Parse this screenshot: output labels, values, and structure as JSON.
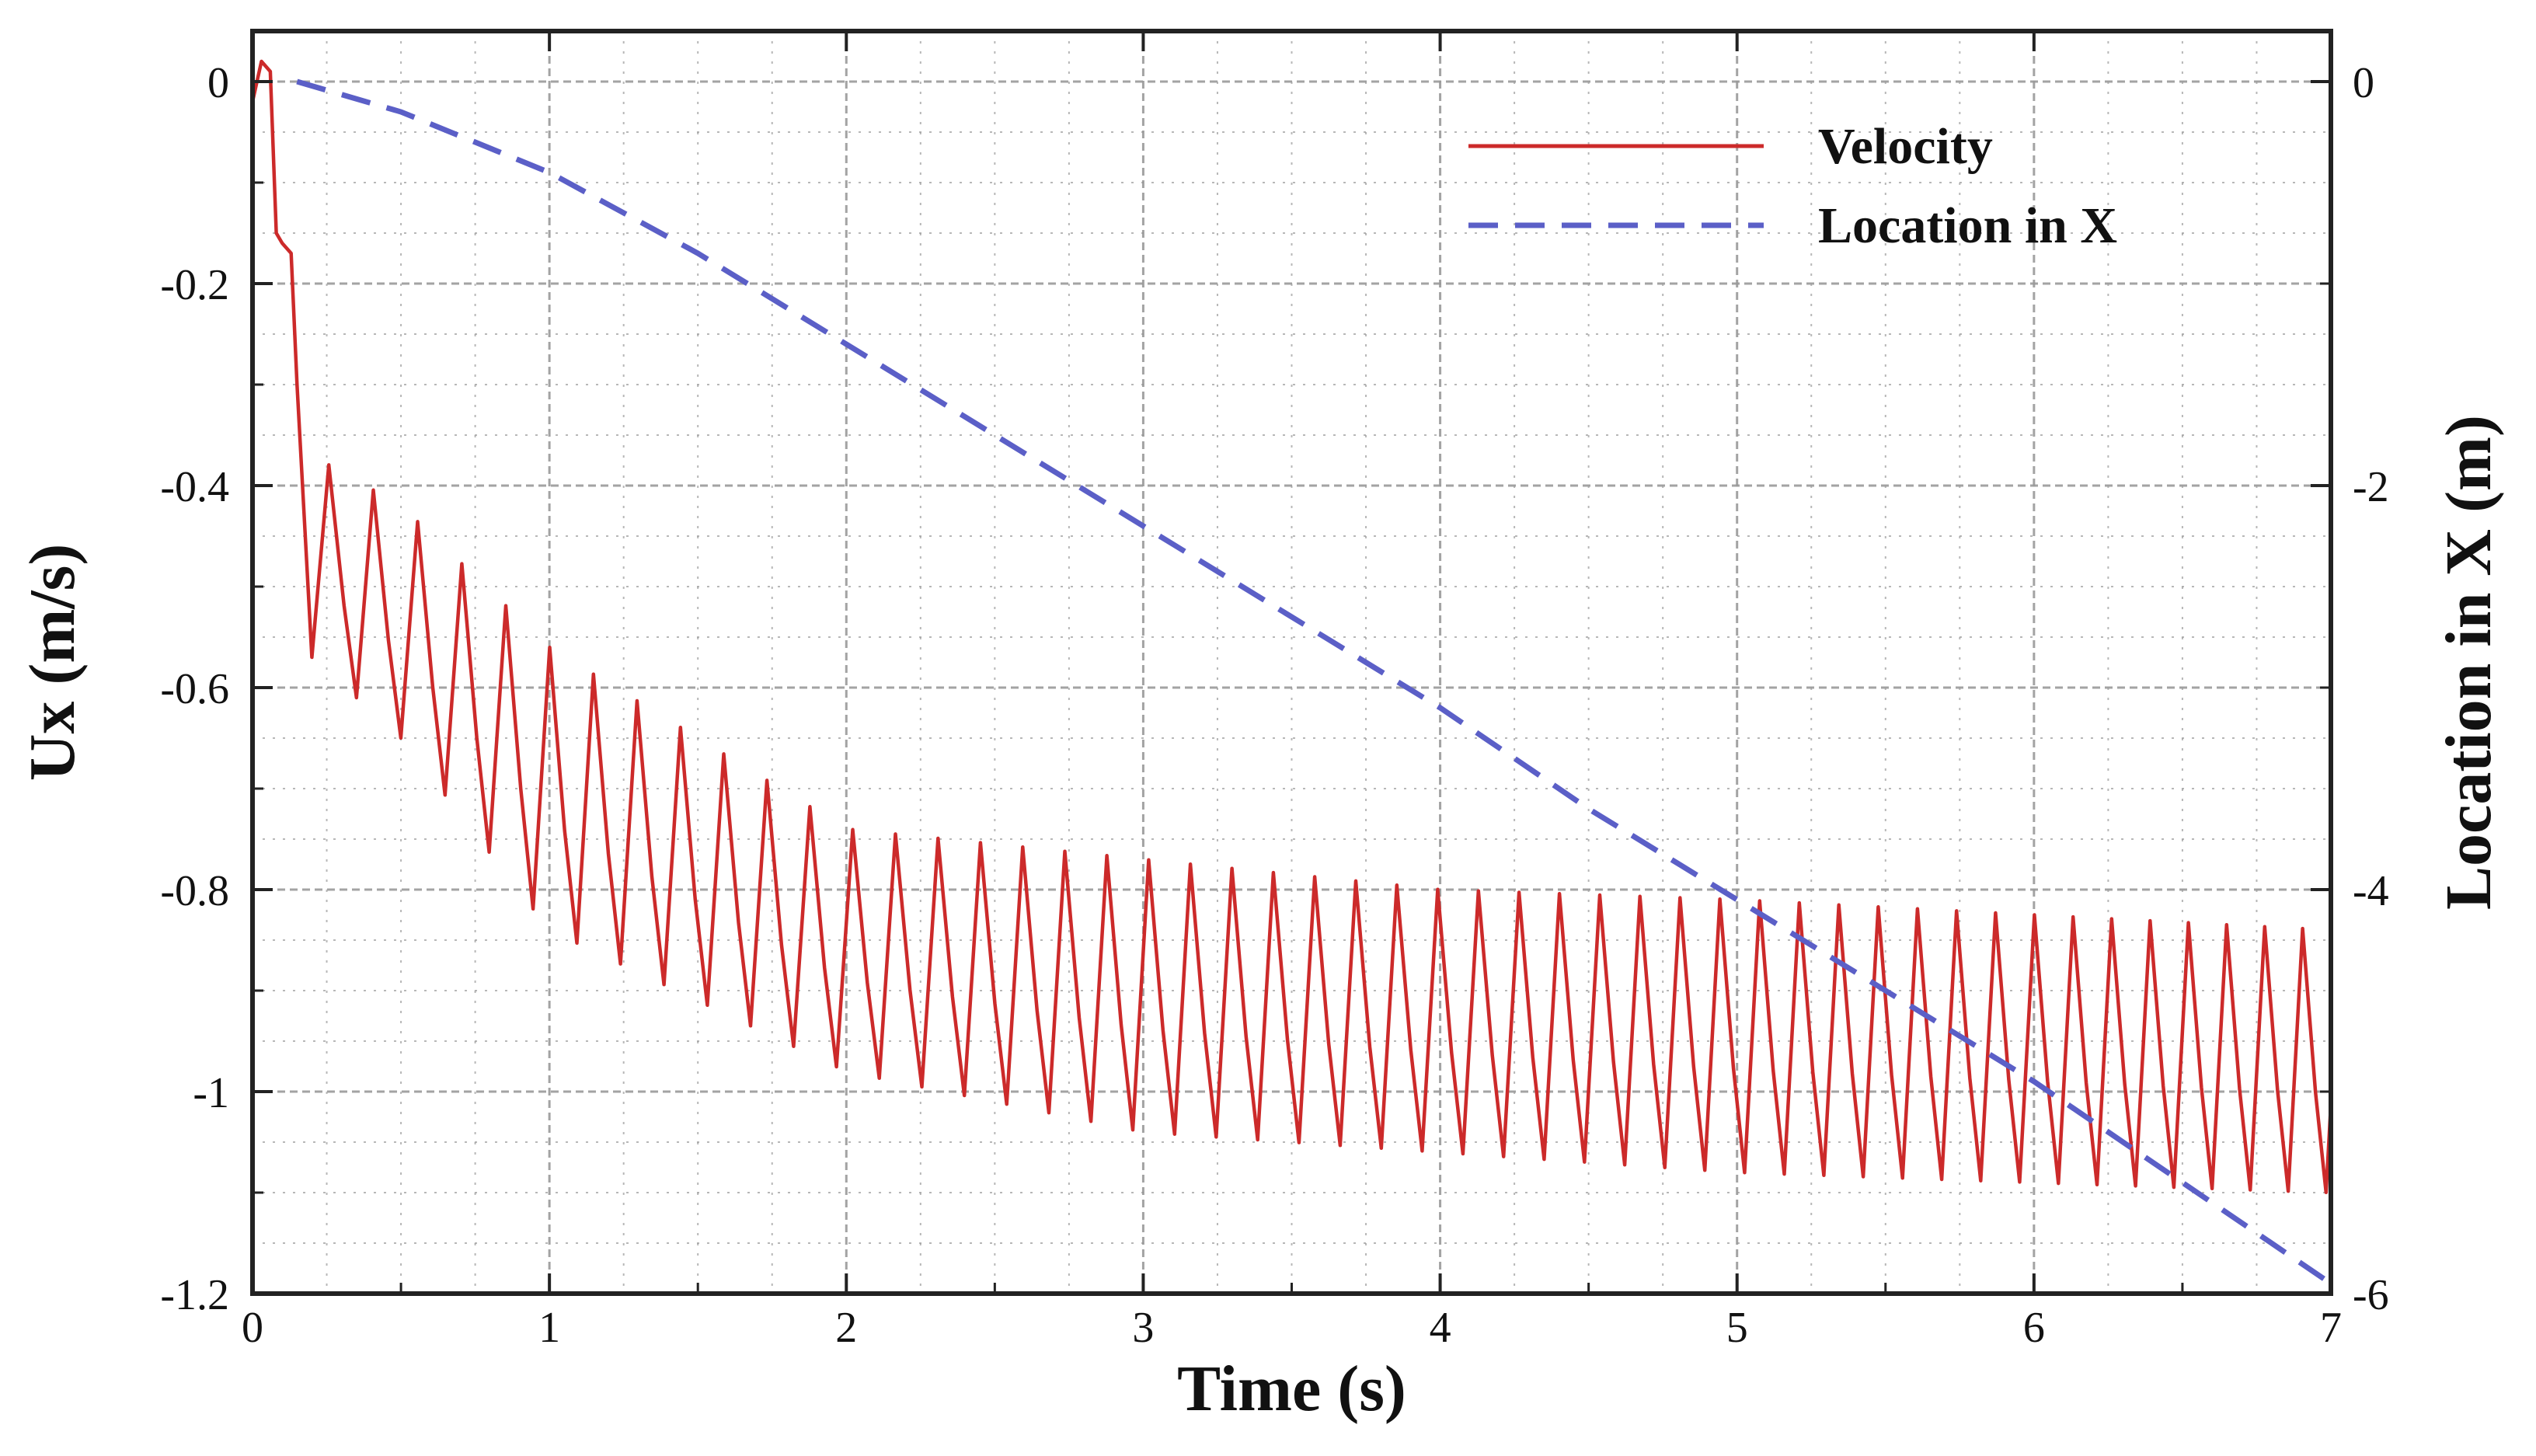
{
  "chart_data": {
    "type": "line",
    "title": "",
    "xlabel": "Time (s)",
    "ylabel": "Ux (m/s)",
    "y2label": "Location in X (m)",
    "xlim": [
      0,
      7
    ],
    "ylim": [
      -1.2,
      0.05
    ],
    "y2lim": [
      -6,
      0.25
    ],
    "xticks": [
      0,
      1,
      2,
      3,
      4,
      5,
      6,
      7
    ],
    "xtick_labels": [
      "0",
      "1",
      "2",
      "3",
      "4",
      "5",
      "6",
      "7"
    ],
    "yticks": [
      0,
      -0.2,
      -0.4,
      -0.6,
      -0.8,
      -1,
      -1.2
    ],
    "ytick_labels": [
      "0",
      "-0.2",
      "-0.4",
      "-0.6",
      "-0.8",
      "-1",
      "-1.2"
    ],
    "y2ticks": [
      0,
      -2,
      -4,
      -6
    ],
    "y2tick_labels": [
      "0",
      "-2",
      "-4",
      "-6"
    ],
    "grid": true,
    "legend_position": "top-right",
    "series": [
      {
        "name": "Velocity",
        "axis": "left",
        "color": "#cc2a2a",
        "style": "solid",
        "x": [
          0,
          0.03,
          0.06,
          0.08,
          0.1,
          0.13,
          0.15,
          0.2
        ],
        "y": [
          -0.02,
          0.02,
          0.01,
          -0.15,
          -0.16,
          -0.17,
          -0.3,
          -0.57
        ],
        "oscillation": {
          "t_start": 0.2,
          "t_end": 7.0,
          "period_start": 0.15,
          "period_end": 0.127,
          "peaks": {
            "t": [
              0.2,
              0.5,
              1.0,
              2.0,
              3.0,
              4.0,
              5.0,
              7.0
            ],
            "y": [
              -0.37,
              -0.42,
              -0.56,
              -0.74,
              -0.77,
              -0.8,
              -0.81,
              -0.84
            ]
          },
          "troughs": {
            "t": [
              0.2,
              0.5,
              1.0,
              2.0,
              3.0,
              4.0,
              5.0,
              7.0
            ],
            "y": [
              -0.57,
              -0.65,
              -0.84,
              -0.98,
              -1.04,
              -1.06,
              -1.08,
              -1.1
            ]
          }
        }
      },
      {
        "name": "Location in X",
        "axis": "right",
        "color": "#5b5fc7",
        "style": "dashed",
        "x": [
          0.15,
          0.5,
          1,
          1.5,
          2,
          2.5,
          3,
          3.5,
          4,
          4.5,
          5,
          5.5,
          6,
          6.5,
          7
        ],
        "y": [
          0,
          -0.15,
          -0.45,
          -0.85,
          -1.3,
          -1.75,
          -2.2,
          -2.65,
          -3.1,
          -3.6,
          -4.05,
          -4.5,
          -4.95,
          -5.45,
          -5.95
        ]
      }
    ],
    "legend": [
      {
        "label": "Velocity",
        "color": "#cc2a2a",
        "style": "solid"
      },
      {
        "label": "Location in X",
        "color": "#5b5fc7",
        "style": "dashed"
      }
    ],
    "grid_color": "#9a9a9a",
    "axis_color": "#222222"
  }
}
